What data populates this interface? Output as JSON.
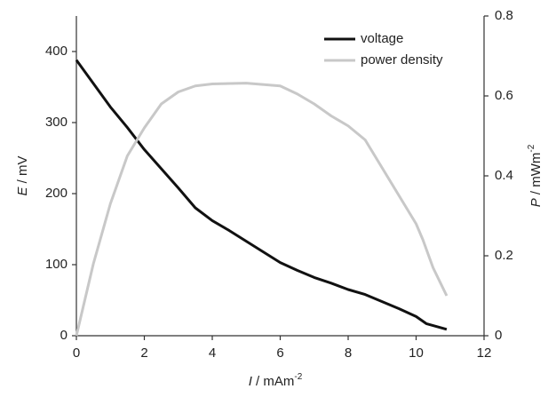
{
  "chart_data": {
    "type": "line",
    "x_label": {
      "symbol": "I",
      "unit": "/ mAm",
      "exponent": "-2"
    },
    "y_label": {
      "symbol": "E",
      "unit": "/ mV"
    },
    "y2_label": {
      "symbol": "P",
      "unit": "/ mWm",
      "exponent": "-2"
    },
    "xlim": [
      0,
      12
    ],
    "xticks": [
      0,
      2,
      4,
      6,
      8,
      10,
      12
    ],
    "ylim": [
      0,
      450
    ],
    "yticks": [
      0,
      100,
      200,
      300,
      400
    ],
    "y2lim": [
      0,
      0.8
    ],
    "y2ticks": [
      0,
      0.2,
      0.4,
      0.6,
      0.8
    ],
    "legend": "upper right",
    "series": [
      {
        "name": "voltage",
        "color": "#111111",
        "axis": "y",
        "x": [
          0,
          0.5,
          1,
          1.5,
          2,
          2.5,
          3,
          3.5,
          4,
          4.5,
          5,
          5.5,
          6,
          6.5,
          7,
          7.5,
          8,
          8.5,
          9,
          9.5,
          10,
          10.3,
          10.9
        ],
        "values": [
          388,
          355,
          322,
          293,
          262,
          235,
          208,
          180,
          162,
          148,
          133,
          118,
          103,
          92,
          82,
          74,
          65,
          58,
          48,
          38,
          27,
          17,
          9
        ]
      },
      {
        "name": "power density",
        "color": "#c8c8c8",
        "axis": "y2",
        "x": [
          0,
          0.5,
          1,
          1.5,
          2,
          2.5,
          3,
          3.5,
          4,
          5,
          6,
          6.5,
          7,
          7.5,
          8,
          8.5,
          9,
          9.5,
          10,
          10.2,
          10.5,
          10.9
        ],
        "values": [
          0,
          0.18,
          0.33,
          0.45,
          0.52,
          0.58,
          0.61,
          0.625,
          0.63,
          0.632,
          0.625,
          0.605,
          0.58,
          0.55,
          0.525,
          0.49,
          0.42,
          0.35,
          0.28,
          0.24,
          0.17,
          0.1
        ]
      }
    ]
  }
}
